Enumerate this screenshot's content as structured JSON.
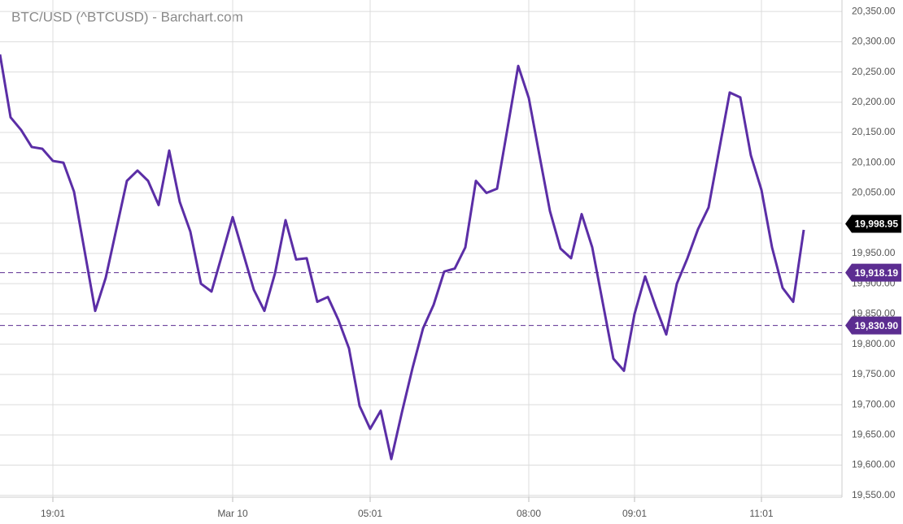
{
  "chart_data": {
    "type": "line",
    "title": "BTC/USD (^BTCUSD) - Barchart.com",
    "categories": [
      null,
      null,
      null,
      null,
      null,
      "19:01",
      null,
      null,
      null,
      null,
      null,
      null,
      null,
      null,
      null,
      null,
      null,
      null,
      null,
      null,
      null,
      null,
      "Mar 10",
      null,
      null,
      null,
      null,
      null,
      null,
      null,
      null,
      null,
      null,
      null,
      null,
      "05:01",
      null,
      null,
      null,
      null,
      null,
      null,
      null,
      null,
      null,
      null,
      null,
      null,
      null,
      null,
      "08:00",
      null,
      null,
      null,
      null,
      null,
      null,
      null,
      null,
      null,
      "09:01",
      null,
      null,
      null,
      null,
      null,
      null,
      null,
      null,
      null,
      null,
      null,
      "11:01",
      null,
      null,
      null,
      null
    ],
    "values": [
      20279,
      20175,
      20154,
      20126,
      20123,
      20103,
      20100,
      20052,
      19954,
      19855,
      19910,
      19990,
      20070,
      20087,
      20070,
      20030,
      20120,
      20035,
      19986,
      19900,
      19887,
      19948,
      20010,
      19950,
      19890,
      19855,
      19917,
      20005,
      19940,
      19942,
      19870,
      19878,
      19840,
      19793,
      19698,
      19660,
      19690,
      19610,
      19687,
      19760,
      19826,
      19865,
      19920,
      19925,
      19960,
      20070,
      20050,
      20057,
      20158,
      20260,
      20207,
      20113,
      20020,
      19958,
      19942,
      20015,
      19960,
      19868,
      19776,
      19756,
      19850,
      19912,
      19862,
      19816,
      19900,
      19942,
      19990,
      20026,
      20121,
      20216,
      20208,
      20112,
      20055,
      19960,
      19893,
      19870,
      19989
    ],
    "color": "#5b2ea6",
    "ylim": [
      19547,
      20369
    ],
    "yticks": [
      {
        "value": 19550,
        "label": "19,550.00"
      },
      {
        "value": 19600,
        "label": "19,600.00"
      },
      {
        "value": 19650,
        "label": "19,650.00"
      },
      {
        "value": 19700,
        "label": "19,700.00"
      },
      {
        "value": 19750,
        "label": "19,750.00"
      },
      {
        "value": 19800,
        "label": "19,800.00"
      },
      {
        "value": 19850,
        "label": "19,850.00"
      },
      {
        "value": 19900,
        "label": "19,900.00"
      },
      {
        "value": 19950,
        "label": "19,950.00"
      },
      {
        "value": 20000,
        "label": "20,000.00"
      },
      {
        "value": 20050,
        "label": "20,050.00"
      },
      {
        "value": 20100,
        "label": "20,100.00"
      },
      {
        "value": 20150,
        "label": "20,150.00"
      },
      {
        "value": 20200,
        "label": "20,200.00"
      },
      {
        "value": 20250,
        "label": "20,250.00"
      },
      {
        "value": 20300,
        "label": "20,300.00"
      },
      {
        "value": 20350,
        "label": "20,350.00"
      }
    ],
    "grid": true,
    "last_price": {
      "value": 19998.95,
      "label": "19,998.95",
      "color": "#000000"
    },
    "reference_lines": [
      {
        "value": 19918.19,
        "label": "19,918.19",
        "color": "#5c2d91"
      },
      {
        "value": 19830.9,
        "label": "19,830.90",
        "color": "#5c2d91"
      }
    ]
  }
}
